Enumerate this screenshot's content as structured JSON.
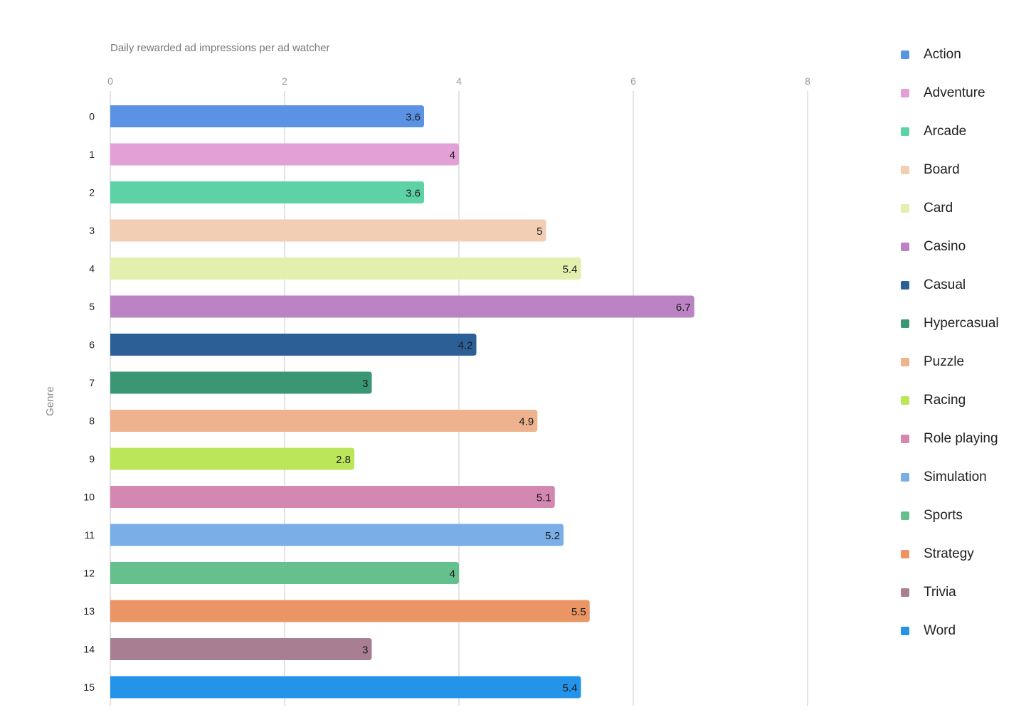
{
  "chart_data": {
    "type": "bar",
    "orientation": "horizontal",
    "title": "Daily rewarded ad impressions per ad watcher",
    "ylabel": "Genre",
    "xlabel": "",
    "xlim": [
      0,
      8
    ],
    "x_ticks": [
      "0",
      "2",
      "4",
      "6",
      "8"
    ],
    "grid": true,
    "legend_position": "right",
    "categories": [
      "0",
      "1",
      "2",
      "3",
      "4",
      "5",
      "6",
      "7",
      "8",
      "9",
      "10",
      "11",
      "12",
      "13",
      "14",
      "15"
    ],
    "values": [
      3.6,
      4,
      3.6,
      5,
      5.4,
      6.7,
      4.2,
      3,
      4.9,
      2.8,
      5.1,
      5.2,
      4,
      5.5,
      3,
      5.4
    ],
    "value_labels": [
      "3.6",
      "4",
      "3.6",
      "5",
      "5.4",
      "6.7",
      "4.2",
      "3",
      "4.9",
      "2.8",
      "5.1",
      "5.2",
      "4",
      "5.5",
      "3",
      "5.4"
    ],
    "series_names": [
      "Action",
      "Adventure",
      "Arcade",
      "Board",
      "Card",
      "Casino",
      "Casual",
      "Hypercasual",
      "Puzzle",
      "Racing",
      "Role playing",
      "Simulation",
      "Sports",
      "Strategy",
      "Trivia",
      "Word"
    ],
    "colors": [
      "#5b93e4",
      "#e3a0d6",
      "#5dd3a5",
      "#f1ceb4",
      "#e3f0ad",
      "#bb82c4",
      "#2d5f97",
      "#3a9673",
      "#efb28e",
      "#bbe65a",
      "#d387b1",
      "#7aaee6",
      "#66c08d",
      "#eb9565",
      "#a87e93",
      "#2394ea"
    ]
  }
}
